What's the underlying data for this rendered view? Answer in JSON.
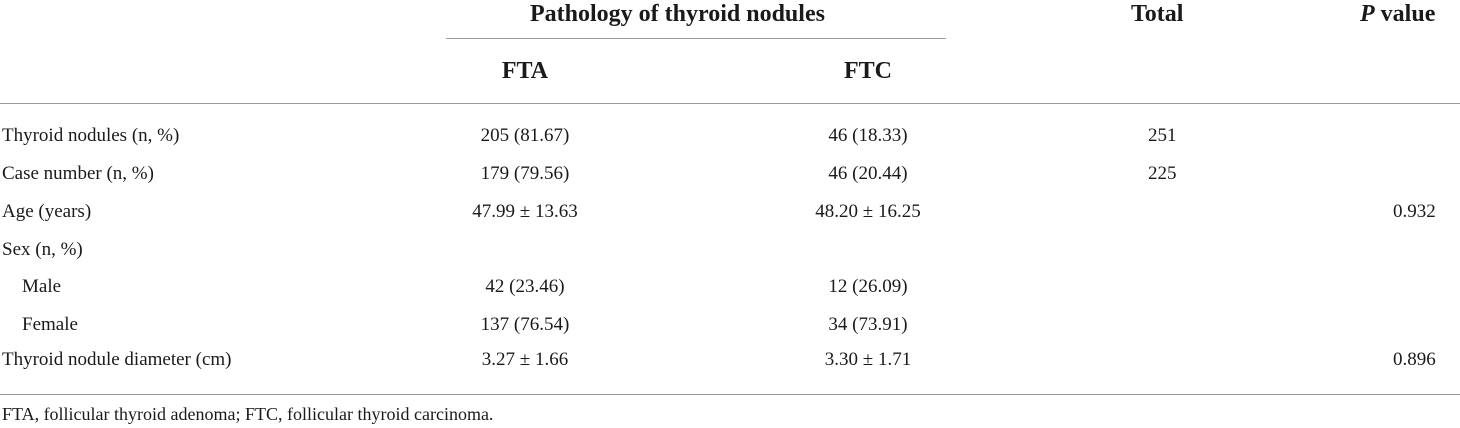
{
  "table": {
    "group_header": "Pathology of thyroid nodules",
    "columns": {
      "fta": "FTA",
      "ftc": "FTC",
      "total": "Total",
      "p_italic": "P",
      "p_rest": " value"
    },
    "rows": [
      {
        "label": "Thyroid nodules (n, %)",
        "fta": "205 (81.67)",
        "ftc": "46 (18.33)",
        "total": "251",
        "p": ""
      },
      {
        "label": "Case number (n, %)",
        "fta": "179 (79.56)",
        "ftc": "46 (20.44)",
        "total": "225",
        "p": ""
      },
      {
        "label": "Age (years)",
        "fta": "47.99 ± 13.63",
        "ftc": "48.20 ± 16.25",
        "total": "",
        "p": "0.932"
      },
      {
        "label": "Sex (n, %)",
        "fta": "",
        "ftc": "",
        "total": "",
        "p": ""
      },
      {
        "label": "Male",
        "fta": "42 (23.46)",
        "ftc": "12 (26.09)",
        "total": "",
        "p": ""
      },
      {
        "label": "Female",
        "fta": "137 (76.54)",
        "ftc": "34 (73.91)",
        "total": "",
        "p": ""
      },
      {
        "label": "Thyroid nodule diameter (cm)",
        "fta": "3.27 ± 1.66",
        "ftc": "3.30 ± 1.71",
        "total": "",
        "p": "0.896"
      }
    ],
    "footnote": "FTA, follicular thyroid adenoma; FTC, follicular thyroid carcinoma."
  }
}
